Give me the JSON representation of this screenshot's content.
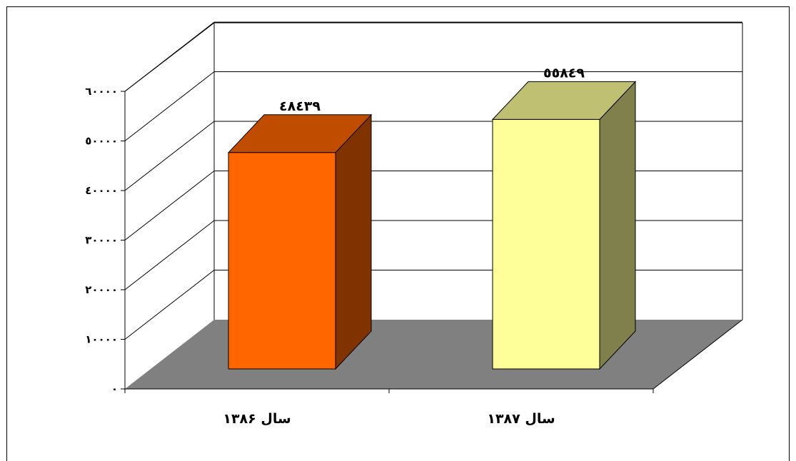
{
  "chart_data": {
    "type": "bar",
    "style": "3d-column",
    "categories": [
      "سال ۱۳۸۶",
      "سال ۱۳۸۷"
    ],
    "values": [
      48439,
      55849
    ],
    "value_labels": [
      "٤٨٤٣٩",
      "٥٥٨٤٩"
    ],
    "y_tick_values": [
      0,
      10000,
      20000,
      30000,
      40000,
      50000,
      60000
    ],
    "y_tick_labels": [
      "٠",
      "١٠٠٠٠",
      "٢٠٠٠٠",
      "٣٠٠٠٠",
      "٤٠٠٠٠",
      "٥٠٠٠٠",
      "٦٠٠٠٠"
    ],
    "ylim": [
      0,
      60000
    ],
    "grid": true,
    "legend": "none",
    "colors": {
      "bar_1_front": "#ff6600",
      "bar_1_top": "#c04c00",
      "bar_1_side": "#803300",
      "bar_2_front": "#ffff99",
      "bar_2_top": "#c0c073",
      "bar_2_side": "#80804d",
      "floor": "#808080",
      "grid": "#000000"
    }
  }
}
